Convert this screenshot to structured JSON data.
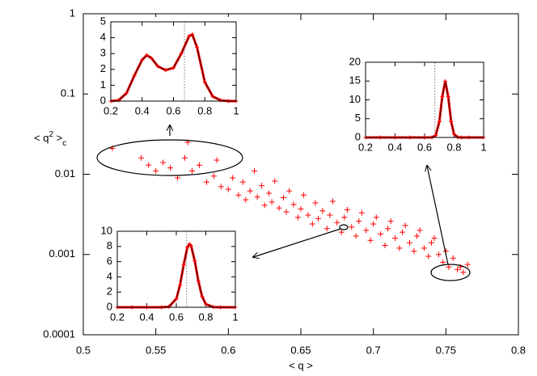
{
  "chart_data": [
    {
      "type": "scatter",
      "color": "#ff0000",
      "log_y": true,
      "xlabel": "< q >",
      "ylabel": {
        "base": "< q",
        "sup": "2",
        "close": " >",
        "sub": "c"
      },
      "xlim": [
        0.5,
        0.8
      ],
      "xticks": [
        0.5,
        0.55,
        0.6,
        0.65,
        0.7,
        0.75,
        0.8
      ],
      "ylim": [
        0.0001,
        1
      ],
      "yticks": [
        0.0001,
        0.001,
        0.01,
        0.1,
        1
      ],
      "x": [
        0.52,
        0.54,
        0.545,
        0.55,
        0.555,
        0.56,
        0.565,
        0.57,
        0.572,
        0.575,
        0.58,
        0.585,
        0.59,
        0.592,
        0.595,
        0.6,
        0.603,
        0.607,
        0.61,
        0.612,
        0.615,
        0.618,
        0.62,
        0.623,
        0.625,
        0.628,
        0.63,
        0.632,
        0.635,
        0.638,
        0.64,
        0.642,
        0.645,
        0.648,
        0.65,
        0.652,
        0.655,
        0.658,
        0.66,
        0.662,
        0.665,
        0.668,
        0.67,
        0.672,
        0.675,
        0.678,
        0.68,
        0.682,
        0.685,
        0.688,
        0.69,
        0.692,
        0.695,
        0.698,
        0.7,
        0.702,
        0.705,
        0.708,
        0.71,
        0.712,
        0.715,
        0.718,
        0.72,
        0.722,
        0.725,
        0.728,
        0.73,
        0.732,
        0.735,
        0.738,
        0.74,
        0.742,
        0.745,
        0.748,
        0.75,
        0.752,
        0.755,
        0.758,
        0.76,
        0.762,
        0.765
      ],
      "y": [
        0.021,
        0.016,
        0.013,
        0.011,
        0.014,
        0.012,
        0.009,
        0.016,
        0.025,
        0.011,
        0.013,
        0.008,
        0.0095,
        0.015,
        0.007,
        0.0065,
        0.009,
        0.0055,
        0.008,
        0.0048,
        0.0062,
        0.011,
        0.0052,
        0.0072,
        0.0041,
        0.0058,
        0.0045,
        0.0082,
        0.0038,
        0.0051,
        0.0034,
        0.0062,
        0.0042,
        0.0029,
        0.0037,
        0.0055,
        0.0031,
        0.0024,
        0.0044,
        0.0028,
        0.0035,
        0.0021,
        0.0031,
        0.0046,
        0.0025,
        0.0019,
        0.0029,
        0.0036,
        0.0022,
        0.0017,
        0.0026,
        0.0033,
        0.002,
        0.0015,
        0.0024,
        0.0029,
        0.0018,
        0.0013,
        0.0021,
        0.0026,
        0.0016,
        0.0012,
        0.0019,
        0.0023,
        0.0014,
        0.0011,
        0.0017,
        0.002,
        0.0012,
        0.00095,
        0.0014,
        0.0016,
        0.001,
        0.0008,
        0.0011,
        0.0007,
        0.0009,
        0.00065,
        0.0007,
        0.0006,
        0.00075
      ]
    },
    {
      "type": "scatter",
      "color": "#ff0000",
      "reference_x": 0.67,
      "xlim": [
        0.2,
        1
      ],
      "xticks": [
        0.2,
        0.4,
        0.6,
        0.8,
        1
      ],
      "ylim": [
        0,
        5
      ],
      "yticks": [
        0,
        1,
        2,
        3,
        4,
        5
      ],
      "x": [
        0.2,
        0.25,
        0.3,
        0.35,
        0.4,
        0.43,
        0.46,
        0.5,
        0.55,
        0.6,
        0.65,
        0.7,
        0.72,
        0.75,
        0.8,
        0.85,
        0.9,
        0.95,
        1
      ],
      "y": [
        0,
        0.05,
        0.5,
        1.6,
        2.6,
        2.9,
        2.7,
        2.2,
        1.95,
        2.1,
        3.0,
        4.1,
        4.2,
        3.4,
        1.2,
        0.3,
        0.05,
        0,
        0
      ]
    },
    {
      "type": "scatter",
      "color": "#ff0000",
      "reference_x": 0.67,
      "xlim": [
        0.2,
        1
      ],
      "xticks": [
        0.2,
        0.4,
        0.6,
        0.8,
        1
      ],
      "ylim": [
        0,
        20
      ],
      "yticks": [
        0,
        5,
        10,
        15,
        20
      ],
      "x": [
        0.2,
        0.3,
        0.4,
        0.5,
        0.6,
        0.65,
        0.675,
        0.7,
        0.72,
        0.74,
        0.76,
        0.78,
        0.8,
        0.825,
        0.85,
        0.9,
        1
      ],
      "y": [
        0,
        0,
        0,
        0,
        0,
        0.02,
        0.51,
        4.2,
        10.9,
        15,
        10.9,
        4.2,
        0.84,
        0.05,
        0,
        0,
        0
      ]
    },
    {
      "type": "scatter",
      "color": "#ff0000",
      "reference_x": 0.67,
      "xlim": [
        0.2,
        1
      ],
      "xticks": [
        0.2,
        0.4,
        0.6,
        0.8,
        1
      ],
      "ylim": [
        0,
        10
      ],
      "yticks": [
        0,
        2,
        4,
        6,
        8,
        10
      ],
      "x": [
        0.2,
        0.3,
        0.4,
        0.5,
        0.55,
        0.6,
        0.625,
        0.65,
        0.675,
        0.69,
        0.7,
        0.725,
        0.75,
        0.775,
        0.8,
        0.85,
        0.9,
        1
      ],
      "y": [
        0,
        0,
        0,
        0,
        0.07,
        1.1,
        2.9,
        5.6,
        7.9,
        8.3,
        8.1,
        6.1,
        3.4,
        1.4,
        0.42,
        0.02,
        0,
        0
      ]
    }
  ]
}
